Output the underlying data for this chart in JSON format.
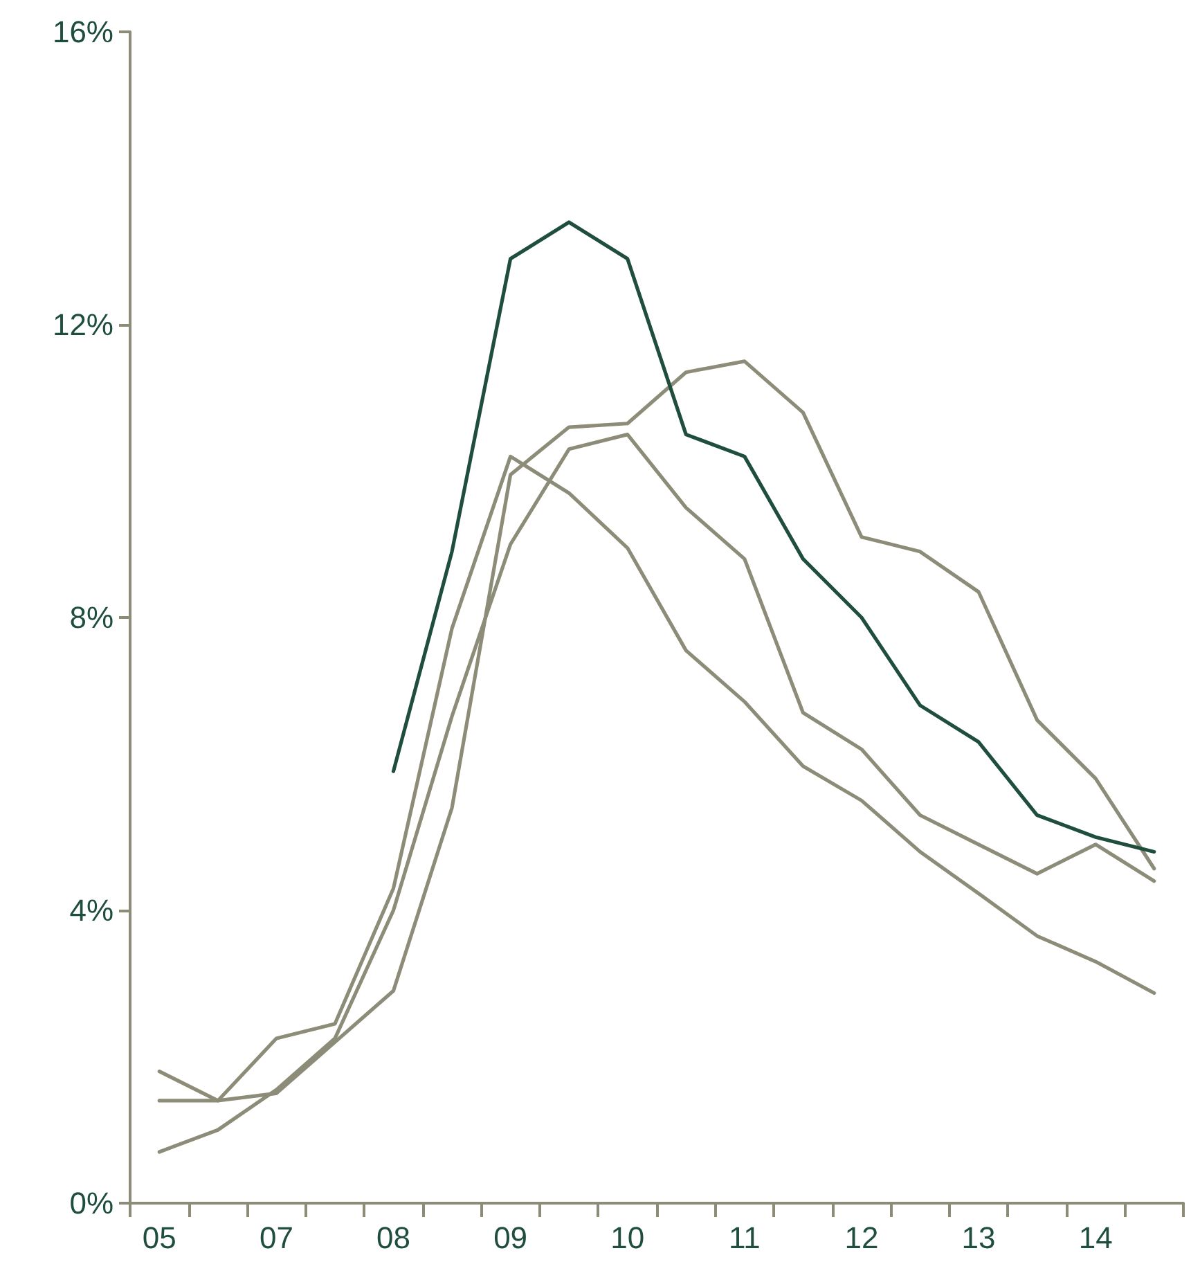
{
  "chart_data": {
    "type": "line",
    "categories": [
      "05",
      null,
      "07",
      null,
      "08",
      null,
      "09",
      null,
      "10",
      null,
      "11",
      null,
      "12",
      null,
      "13",
      null,
      "14",
      null
    ],
    "series": [
      {
        "color": "#8c8c78",
        "values": [
          1.8,
          1.4,
          2.25,
          2.45,
          4.3,
          7.85,
          10.2,
          9.7,
          8.95,
          7.55,
          6.85,
          5.97,
          5.5,
          4.8,
          4.23,
          3.65,
          3.3,
          2.87
        ]
      },
      {
        "color": "#8c8c78",
        "values": [
          0.7,
          1.0,
          1.55,
          2.25,
          4.0,
          6.65,
          9.0,
          10.3,
          10.5,
          9.5,
          8.8,
          6.7,
          6.2,
          5.3,
          4.9,
          4.5,
          4.9,
          4.4
        ]
      },
      {
        "color": "#8c8c78",
        "values": [
          1.4,
          1.4,
          1.5,
          2.2,
          2.9,
          5.4,
          9.95,
          10.6,
          10.65,
          11.35,
          11.5,
          10.8,
          9.1,
          8.9,
          8.35,
          6.6,
          5.8,
          4.57
        ]
      },
      {
        "color": "#1f4e3d",
        "values": [
          null,
          null,
          null,
          null,
          5.9,
          8.9,
          12.9,
          13.4,
          12.9,
          10.5,
          10.2,
          8.8,
          8.0,
          6.8,
          6.3,
          5.3,
          5.0,
          4.8
        ]
      }
    ],
    "ylim": [
      0,
      16
    ],
    "yticks": [
      {
        "value": 0,
        "label": "0%"
      },
      {
        "value": 4,
        "label": "4%"
      },
      {
        "value": 8,
        "label": "8%"
      },
      {
        "value": 12,
        "label": "12%"
      },
      {
        "value": 16,
        "label": "16%"
      }
    ],
    "grid": false,
    "marker": "none",
    "line_style": "solid"
  }
}
